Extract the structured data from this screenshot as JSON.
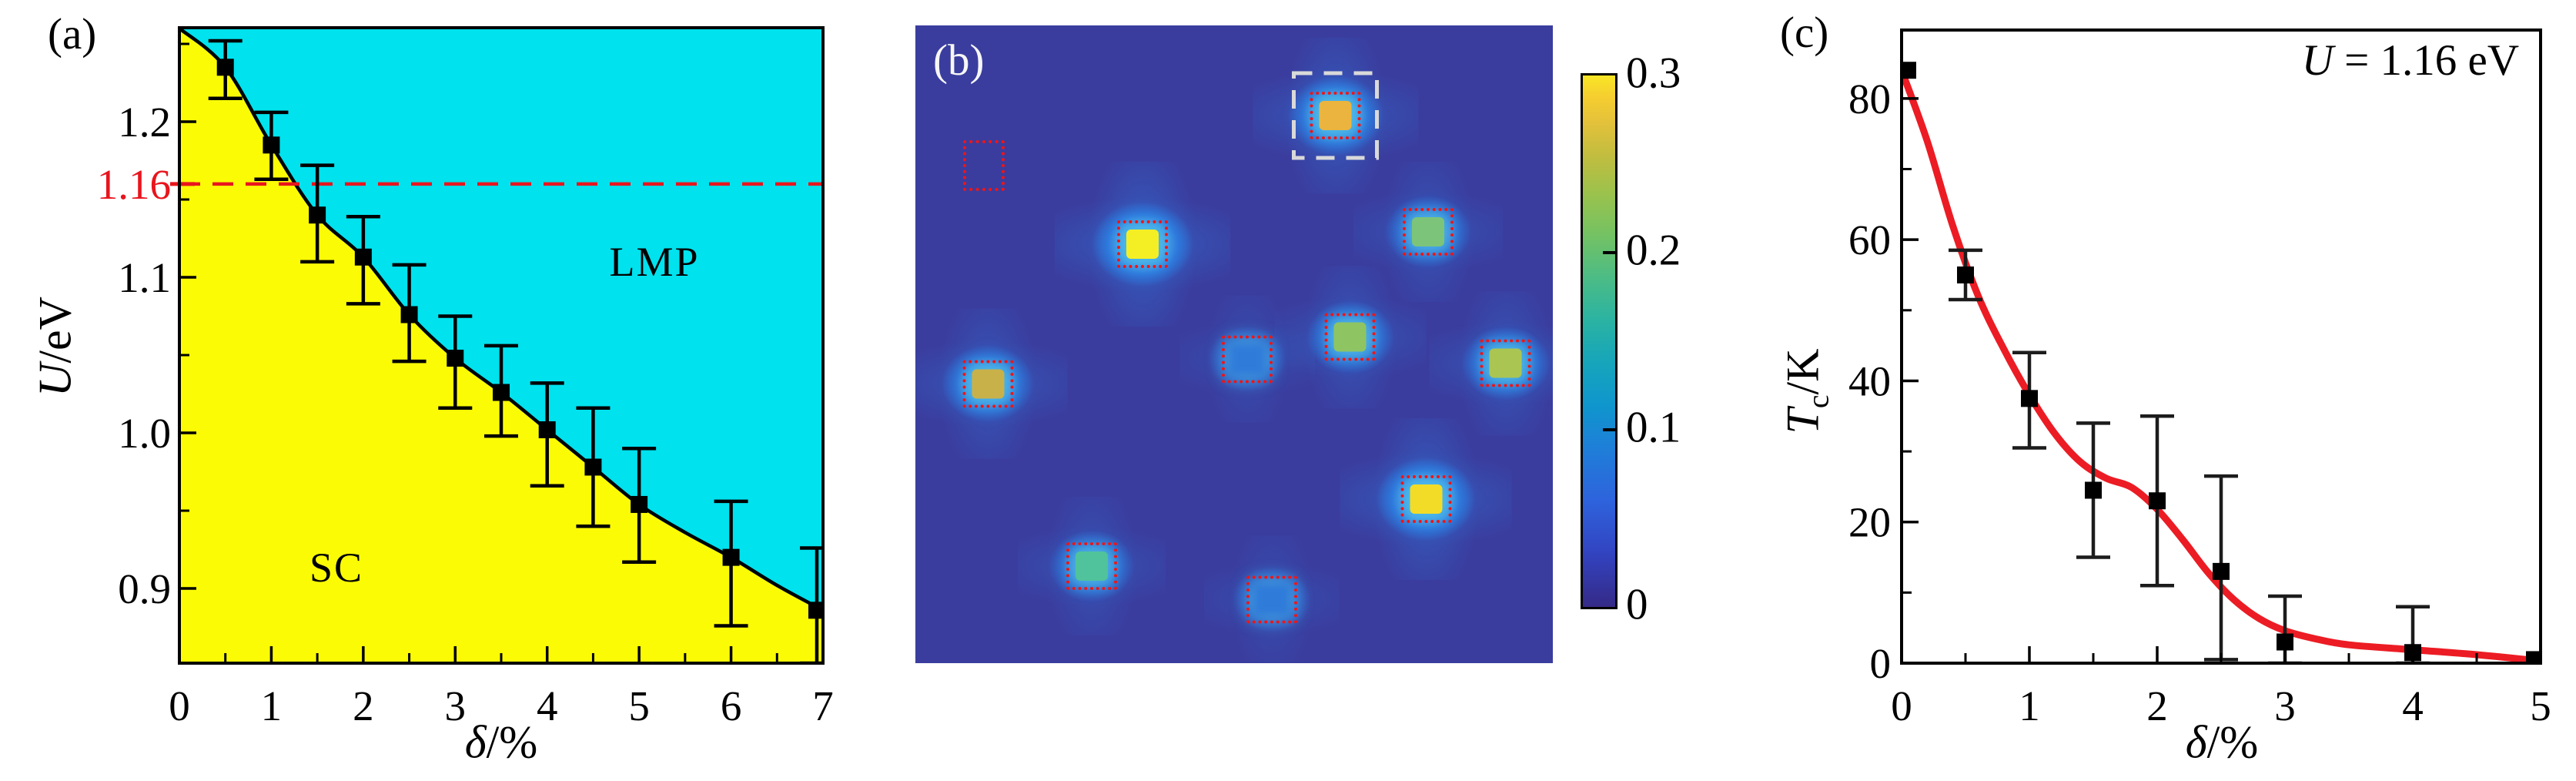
{
  "figure_labels": {
    "a": "(a)",
    "b": "(b)",
    "c": "(c)"
  },
  "panel_a": {
    "xlabel": {
      "symbol": "δ",
      "rest": "/%"
    },
    "ylabel": {
      "symbol": "U",
      "rest": "/eV"
    },
    "regions": {
      "sc": "SC",
      "lmp": "LMP"
    },
    "reference_label": "1.16"
  },
  "panel_b": {
    "colorbar": {
      "tick_labels": [
        "0",
        "0.1",
        "0.2",
        "0.3"
      ]
    }
  },
  "panel_c": {
    "xlabel": {
      "symbol": "δ",
      "rest": "/%"
    },
    "ylabel": {
      "symbol": "T",
      "sub": "c",
      "rest": "/K"
    },
    "annotation": {
      "symbol": "U",
      "rest": " = 1.16 eV"
    }
  },
  "colors": {
    "sc_region": "#fbfb06",
    "lmp_region": "#00e2ee",
    "reference_red": "#e8151d",
    "fit_curve_red": "#ec1c24",
    "heatmap_background": "#3a3d9e",
    "marker_black": "#000000"
  },
  "chart_data": [
    {
      "id": "a",
      "type": "area",
      "title": "",
      "xlabel": "δ/%",
      "ylabel": "U/eV",
      "xlim": [
        0,
        7
      ],
      "ylim": [
        0.852,
        1.2604
      ],
      "grid": false,
      "x_major_ticks": [
        0,
        1,
        2,
        3,
        4,
        5,
        6,
        7
      ],
      "x_major_labels": [
        "0",
        "1",
        "2",
        "3",
        "4",
        "5",
        "6",
        "7"
      ],
      "x_minor_ticks": [
        0.5,
        1.5,
        2.5,
        3.5,
        4.5,
        5.5,
        6.5
      ],
      "y_major_ticks": [
        0.9,
        1.0,
        1.1,
        1.2
      ],
      "y_major_labels": [
        "0.9",
        "1.0",
        "1.1",
        "1.2"
      ],
      "y_minor_ticks": [
        0.95,
        1.05,
        1.15,
        1.25
      ],
      "regions": [
        {
          "name": "SC",
          "color": "#fbfb06",
          "side": "below-boundary"
        },
        {
          "name": "LMP",
          "color": "#00e2ee",
          "side": "above-boundary"
        }
      ],
      "reference_line": {
        "value": 1.16,
        "label": "1.16",
        "color": "#e8151d",
        "style": "dashed"
      },
      "boundary": [
        [
          0,
          1.26
        ],
        [
          0.5,
          1.235
        ],
        [
          1.0,
          1.185
        ],
        [
          1.5,
          1.14
        ],
        [
          2.0,
          1.113
        ],
        [
          2.5,
          1.076
        ],
        [
          3.0,
          1.048
        ],
        [
          3.5,
          1.026
        ],
        [
          4.0,
          1.002
        ],
        [
          4.5,
          0.978
        ],
        [
          5.0,
          0.954
        ],
        [
          5.5,
          0.936
        ],
        [
          6.0,
          0.92
        ],
        [
          6.5,
          0.902
        ],
        [
          7.0,
          0.886
        ]
      ],
      "points": {
        "marker": "square",
        "color": "#000000",
        "x": [
          0.5,
          1.0,
          1.5,
          2.0,
          2.5,
          3.0,
          3.5,
          4.0,
          4.5,
          5.0,
          6.0,
          7.0
        ],
        "y": [
          1.235,
          1.185,
          1.14,
          1.113,
          1.076,
          1.048,
          1.026,
          1.002,
          0.978,
          0.954,
          0.92,
          0.886
        ],
        "y_lo": [
          1.215,
          1.163,
          1.11,
          1.083,
          1.046,
          1.016,
          0.998,
          0.966,
          0.94,
          0.917,
          0.876,
          0.848
        ],
        "y_hi": [
          1.252,
          1.206,
          1.172,
          1.139,
          1.108,
          1.075,
          1.056,
          1.032,
          1.016,
          0.99,
          0.956,
          0.926
        ]
      }
    },
    {
      "id": "b",
      "type": "heatmap",
      "background_color": "#3a3d9e",
      "value_range": [
        0,
        0.3
      ],
      "colorbar": {
        "ticks": [
          0,
          0.1,
          0.2,
          0.3
        ],
        "tick_labels": [
          "0",
          "0.1",
          "0.2",
          "0.3"
        ]
      },
      "spots": [
        {
          "fx": 0.659,
          "fy": 0.141,
          "v": 0.25,
          "core": "#eab43f",
          "red_box": true,
          "white_box": true
        },
        {
          "fx": 0.356,
          "fy": 0.343,
          "v": 0.3,
          "core": "#f4ef25",
          "red_box": true
        },
        {
          "fx": 0.804,
          "fy": 0.324,
          "v": 0.17,
          "core": "#7cc479",
          "red_box": true
        },
        {
          "fx": 0.114,
          "fy": 0.562,
          "v": 0.22,
          "core": "#c9b14a",
          "red_box": true
        },
        {
          "fx": 0.682,
          "fy": 0.489,
          "v": 0.18,
          "core": "#8ec562",
          "red_box": true
        },
        {
          "fx": 0.521,
          "fy": 0.523,
          "v": 0.1,
          "core": "#2f7bd9",
          "red_box": true,
          "soft": true
        },
        {
          "fx": 0.926,
          "fy": 0.53,
          "v": 0.19,
          "core": "#abc553",
          "red_box": true
        },
        {
          "fx": 0.801,
          "fy": 0.743,
          "v": 0.28,
          "core": "#f2dc27",
          "red_box": true
        },
        {
          "fx": 0.277,
          "fy": 0.848,
          "v": 0.16,
          "core": "#50c29c",
          "red_box": true
        },
        {
          "fx": 0.559,
          "fy": 0.9,
          "v": 0.1,
          "core": "#2f7bd9",
          "red_box": true,
          "soft": true
        }
      ],
      "empty_box": {
        "fx": 0.108,
        "fy": 0.22,
        "w": 46,
        "h": 58
      }
    },
    {
      "id": "c",
      "type": "scatter-line",
      "xlabel": "δ/%",
      "ylabel": "Tc/K",
      "annotation": "U = 1.16 eV",
      "xlim": [
        0,
        5
      ],
      "ylim": [
        0,
        89.7
      ],
      "grid": false,
      "x_major_ticks": [
        0,
        1,
        2,
        3,
        4,
        5
      ],
      "x_major_labels": [
        "0",
        "1",
        "2",
        "3",
        "4",
        "5"
      ],
      "x_minor_ticks": [
        0.5,
        1.5,
        2.5,
        3.5,
        4.5
      ],
      "y_major_ticks": [
        0,
        20,
        40,
        60,
        80
      ],
      "y_major_labels": [
        "0",
        "20",
        "40",
        "60",
        "80"
      ],
      "y_minor_ticks": [
        10,
        30,
        50,
        70
      ],
      "points": {
        "marker": "square",
        "color": "#000000",
        "x": [
          0,
          0.5,
          1.0,
          1.5,
          2.0,
          2.5,
          3.0,
          4.0,
          5.0
        ],
        "y": [
          84,
          55,
          37.5,
          24.5,
          23,
          13,
          3,
          1.5,
          0.5
        ],
        "y_lo": [
          null,
          51.5,
          30.5,
          15,
          11,
          0.5,
          0,
          0,
          null
        ],
        "y_hi": [
          null,
          58.5,
          44,
          34,
          35,
          26.5,
          9.5,
          8,
          null
        ]
      },
      "fit_curve": {
        "color": "#ec1c24",
        "points": [
          [
            0,
            84
          ],
          [
            0.2,
            74
          ],
          [
            0.4,
            62
          ],
          [
            0.6,
            52
          ],
          [
            0.8,
            44.5
          ],
          [
            1.0,
            38
          ],
          [
            1.2,
            32.5
          ],
          [
            1.4,
            28.5
          ],
          [
            1.6,
            26.2
          ],
          [
            1.8,
            24.9
          ],
          [
            2.0,
            21.8
          ],
          [
            2.2,
            17.5
          ],
          [
            2.4,
            12.8
          ],
          [
            2.6,
            9.0
          ],
          [
            2.8,
            6.3
          ],
          [
            3.0,
            4.6
          ],
          [
            3.25,
            3.4
          ],
          [
            3.5,
            2.6
          ],
          [
            4.0,
            1.9
          ],
          [
            4.5,
            1.2
          ],
          [
            5.0,
            0.3
          ]
        ]
      }
    }
  ]
}
